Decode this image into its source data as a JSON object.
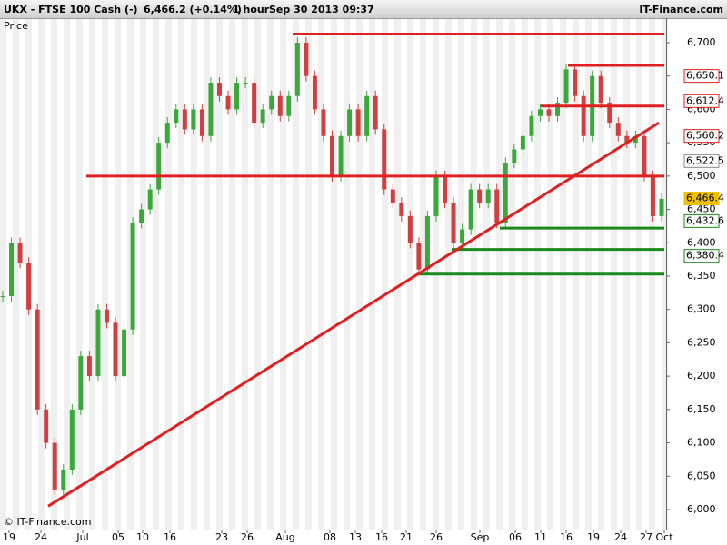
{
  "chart_data": {
    "type": "candlestick",
    "title": "UKX - FTSE 100 Cash (-)",
    "quote": "6,466.2 (+0.14%)",
    "interval": "1 hour",
    "timestamp": "Sep 30 2013 09:37",
    "brand": "IT-Finance.com",
    "copyright": "© IT-Finance.com",
    "ylabel": "Price",
    "ylim": [
      5975,
      6730
    ],
    "yticks": [
      {
        "value": 6000,
        "label": "6,000"
      },
      {
        "value": 6050,
        "label": "6,050"
      },
      {
        "value": 6100,
        "label": "6,100"
      },
      {
        "value": 6150,
        "label": "6,150"
      },
      {
        "value": 6200,
        "label": "6,200"
      },
      {
        "value": 6250,
        "label": "6,250"
      },
      {
        "value": 6300,
        "label": "6,300"
      },
      {
        "value": 6350,
        "label": "6,350"
      },
      {
        "value": 6400,
        "label": "6,400"
      },
      {
        "value": 6450,
        "label": "6,450"
      },
      {
        "value": 6500,
        "label": "6,500"
      },
      {
        "value": 6550,
        "label": "6,550"
      },
      {
        "value": 6600,
        "label": "6,600"
      },
      {
        "value": 6650,
        "label": "6,650"
      },
      {
        "value": 6700,
        "label": "6,700"
      }
    ],
    "xticks": [
      "19",
      "24",
      "Jul",
      "05",
      "10",
      "16",
      "23",
      "26",
      "Aug",
      "08",
      "13",
      "16",
      "21",
      "26",
      "Sep",
      "06",
      "11",
      "16",
      "19",
      "24",
      "27",
      "Oct"
    ],
    "up_color": "#3aa83a",
    "down_color": "#d04040",
    "values": [
      6320,
      6400,
      6370,
      6300,
      6150,
      6100,
      6030,
      6060,
      6150,
      6230,
      6200,
      6300,
      6280,
      6200,
      6270,
      6430,
      6450,
      6480,
      6550,
      6580,
      6600,
      6570,
      6600,
      6560,
      6640,
      6620,
      6600,
      6640,
      6640,
      6580,
      6600,
      6620,
      6590,
      6620,
      6700,
      6650,
      6600,
      6560,
      6500,
      6560,
      6600,
      6560,
      6620,
      6570,
      6480,
      6460,
      6440,
      6400,
      6360,
      6440,
      6500,
      6460,
      6400,
      6420,
      6480,
      6460,
      6480,
      6430,
      6520,
      6540,
      6560,
      6590,
      6600,
      6590,
      6610,
      6660,
      6620,
      6560,
      6650,
      6610,
      6580,
      6560,
      6550,
      6560,
      6500,
      6440,
      6466
    ],
    "levels": [
      {
        "value": 6713,
        "color": "#e02020"
      },
      {
        "value": 6666,
        "color": "#e02020"
      },
      {
        "value": 6605,
        "color": "#e02020"
      },
      {
        "value": 6500,
        "color": "#e02020"
      },
      {
        "value": 6422,
        "color": "#1a8a1a"
      },
      {
        "value": 6390,
        "color": "#1a8a1a"
      },
      {
        "value": 6353,
        "color": "#1a8a1a"
      }
    ],
    "trendline": {
      "values": [
        6005,
        6580
      ],
      "color": "#e02020"
    },
    "price_tags": [
      {
        "value": 6650.1,
        "label": "6,650.1",
        "color": "#e02020"
      },
      {
        "value": 6612.4,
        "label": "6,612.4",
        "color": "#e02020"
      },
      {
        "value": 6560.2,
        "label": "6,560.2",
        "color": "#e02020"
      },
      {
        "value": 6522.5,
        "label": "6,522.5",
        "color": "#888888"
      },
      {
        "value": 6466.4,
        "label": "6,466.4",
        "color": "#f0c000"
      },
      {
        "value": 6432.6,
        "label": "6,432.6",
        "color": "#1a8a1a"
      },
      {
        "value": 6380.4,
        "label": "6,380.4",
        "color": "#1a8a1a"
      }
    ]
  }
}
